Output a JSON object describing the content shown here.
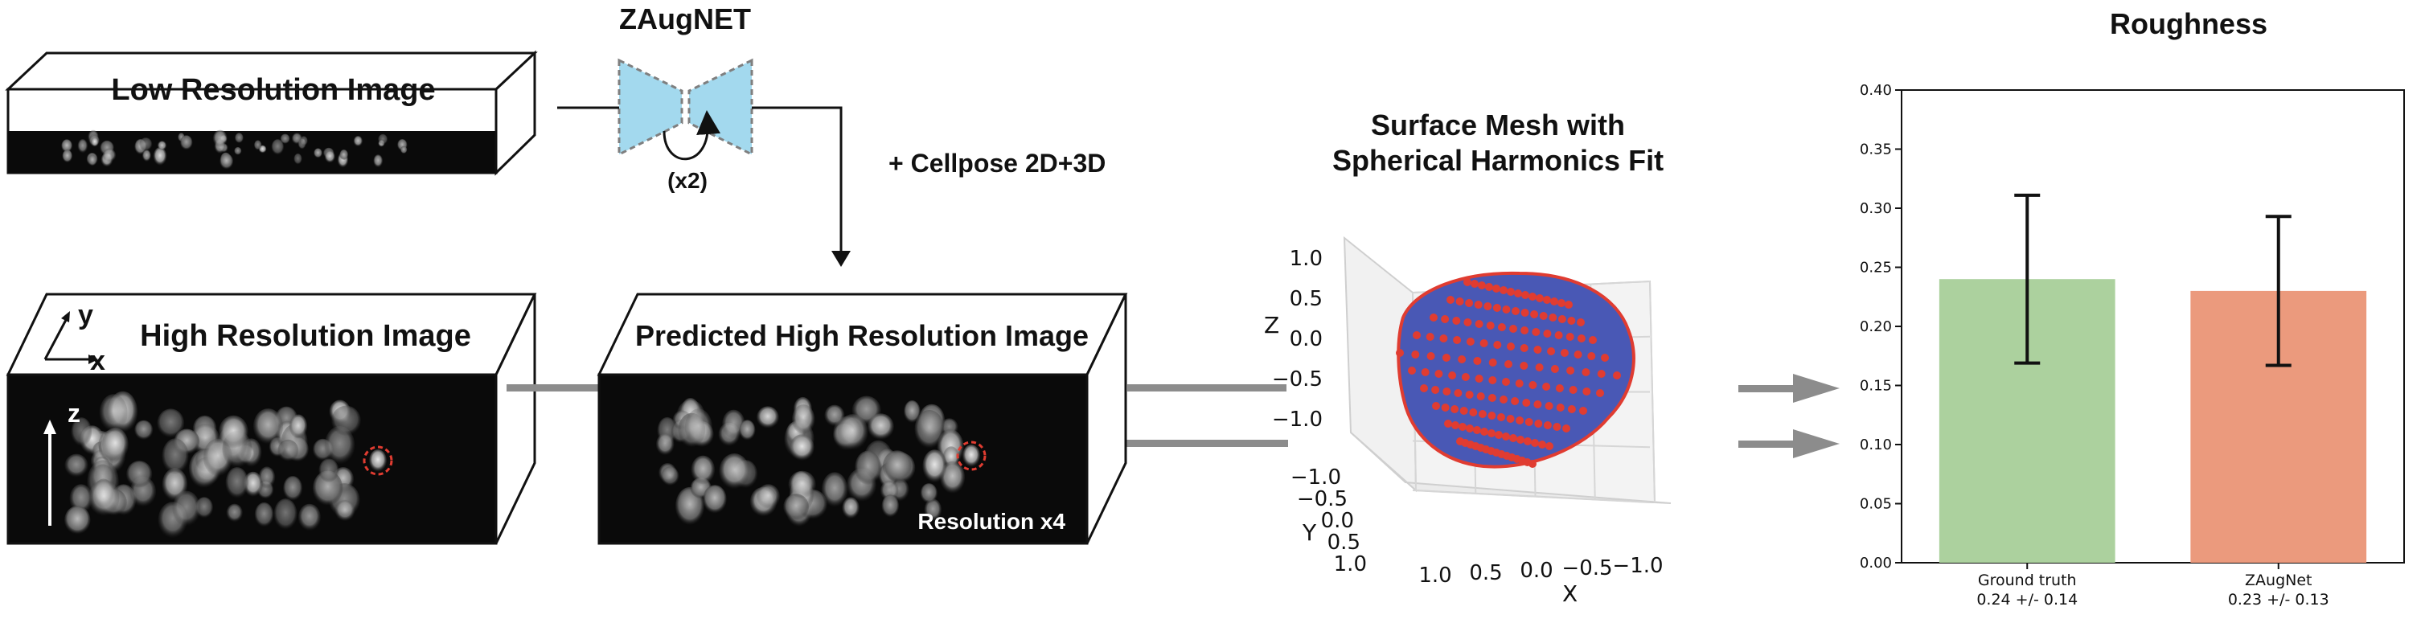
{
  "low_res": {
    "title": "Low Resolution Image"
  },
  "zaugnet": {
    "title": "ZAugNET",
    "factor": "(x2)"
  },
  "cellpose": {
    "label": "+ Cellpose 2D+3D"
  },
  "high_res": {
    "title": "High Resolution Image",
    "axis_y": "y",
    "axis_x": "x",
    "axis_z": "z"
  },
  "predicted": {
    "title": "Predicted High Resolution Image",
    "note": "Resolution x4"
  },
  "mesh": {
    "title_line1": "Surface Mesh with",
    "title_line2": "Spherical Harmonics Fit",
    "z_label": "Z",
    "x_label": "X",
    "y_label": "Y",
    "z_ticks": [
      "1.0",
      "0.5",
      "0.0",
      "−0.5",
      "−1.0"
    ],
    "y_ticks": [
      "−1.0",
      "−0.5",
      "0.0",
      "0.5",
      "1.0"
    ],
    "x_ticks": [
      "1.0",
      "0.5",
      "0.0",
      "−0.5",
      "−1.0"
    ]
  },
  "colors": {
    "ground_truth": "#acd19e",
    "zaugnet": "#eb9a7d",
    "network": "#a3d9ee",
    "marker": "#e03c31",
    "mesh": "#4958b5"
  },
  "chart_data": {
    "type": "bar",
    "title": "Roughness",
    "categories": [
      "Ground truth",
      "ZAugNet"
    ],
    "stats": [
      "0.24 +/- 0.14",
      "0.23 +/- 0.13"
    ],
    "values": [
      0.24,
      0.23
    ],
    "errors": [
      0.071,
      0.063
    ],
    "ylim": [
      0,
      0.4
    ],
    "yticks": [
      "0.00",
      "0.05",
      "0.10",
      "0.15",
      "0.20",
      "0.25",
      "0.30",
      "0.35",
      "0.40"
    ],
    "grid": false
  }
}
